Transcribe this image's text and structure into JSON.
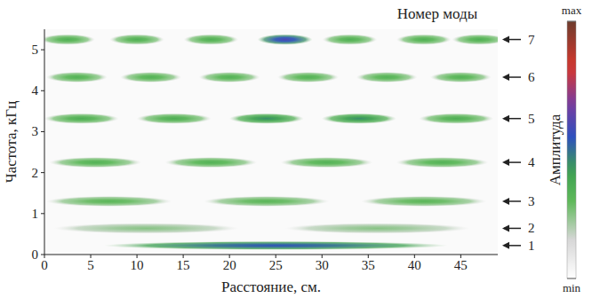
{
  "chart_data": {
    "type": "heatmap",
    "x_label": "Расстояние, см.",
    "y_label": "Частота, кГц",
    "mode_axis_title": "Номер моды",
    "xlim": [
      0,
      49
    ],
    "xticks": [
      0,
      5,
      10,
      15,
      20,
      25,
      30,
      35,
      40,
      45
    ],
    "ylim": [
      0,
      5.5
    ],
    "yticks": [
      0,
      1,
      2,
      3,
      4,
      5
    ],
    "modes": [
      {
        "label": "1",
        "frequency": 0.22,
        "x": [
          25
        ],
        "values": [
          0.55
        ]
      },
      {
        "label": "2",
        "frequency": 0.64,
        "x": [
          11,
          36
        ],
        "values": [
          0.25,
          0.25
        ]
      },
      {
        "label": "3",
        "frequency": 1.3,
        "x": [
          7,
          24,
          41
        ],
        "values": [
          0.32,
          0.32,
          0.32
        ]
      },
      {
        "label": "4",
        "frequency": 2.25,
        "x": [
          5.5,
          18,
          30.5,
          43
        ],
        "values": [
          0.34,
          0.34,
          0.34,
          0.34
        ]
      },
      {
        "label": "5",
        "frequency": 3.32,
        "x": [
          4,
          14,
          24,
          34,
          44.5
        ],
        "values": [
          0.36,
          0.36,
          0.45,
          0.45,
          0.36
        ]
      },
      {
        "label": "6",
        "frequency": 4.33,
        "x": [
          3.5,
          11.5,
          20,
          28.5,
          37,
          45
        ],
        "values": [
          0.34,
          0.34,
          0.34,
          0.34,
          0.34,
          0.34
        ]
      },
      {
        "label": "7",
        "frequency": 5.25,
        "x": [
          2.5,
          10,
          18,
          26,
          33,
          41,
          47
        ],
        "values": [
          0.35,
          0.35,
          0.35,
          0.6,
          0.35,
          0.35,
          0.35
        ]
      }
    ],
    "colorbar": {
      "title": "Амплитуда",
      "range": [
        0,
        1
      ],
      "ticks": [
        {
          "value": 0,
          "label": "min"
        },
        {
          "value": 1,
          "label": "max"
        }
      ]
    }
  }
}
